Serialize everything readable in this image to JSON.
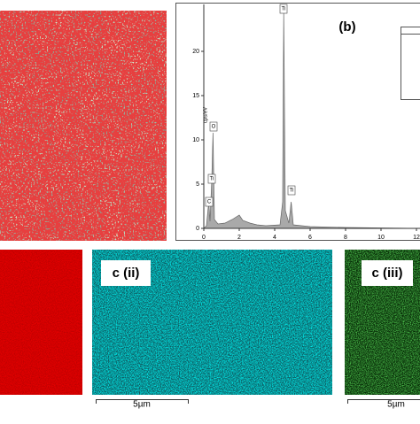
{
  "chart_data": {
    "type": "area",
    "panel_label": "(b)",
    "y_label": "cps/eV",
    "x": [
      0,
      0.15,
      0.28,
      0.35,
      0.45,
      0.52,
      0.6,
      0.8,
      1.2,
      1.6,
      2.0,
      2.2,
      2.6,
      3.0,
      3.5,
      4.3,
      4.45,
      4.51,
      4.6,
      4.8,
      4.93,
      5.05,
      6,
      8,
      10,
      12
    ],
    "values": [
      0,
      0.3,
      3,
      0.8,
      5.5,
      10.8,
      1,
      0.5,
      0.6,
      1,
      1.5,
      0.9,
      0.6,
      0.4,
      0.3,
      0.4,
      3,
      24.5,
      2,
      0.6,
      3,
      0.4,
      0.2,
      0.1,
      0.05,
      0
    ],
    "color": "#a9a9a9",
    "xlim": [
      0,
      12.2
    ],
    "ylim": [
      0,
      25.3
    ],
    "xticks": [
      0,
      2,
      4,
      6,
      8,
      10,
      12
    ],
    "yticks": [
      0,
      5,
      10,
      15,
      20
    ],
    "annotations": [
      "Ti",
      "O",
      "Ti",
      "C",
      "Ti"
    ]
  },
  "maps": {
    "c_ii": {
      "label": "c (ii)",
      "scale_bar": "5µm"
    },
    "c_iii": {
      "label": "c (iii)",
      "scale_bar": "5µm"
    }
  }
}
